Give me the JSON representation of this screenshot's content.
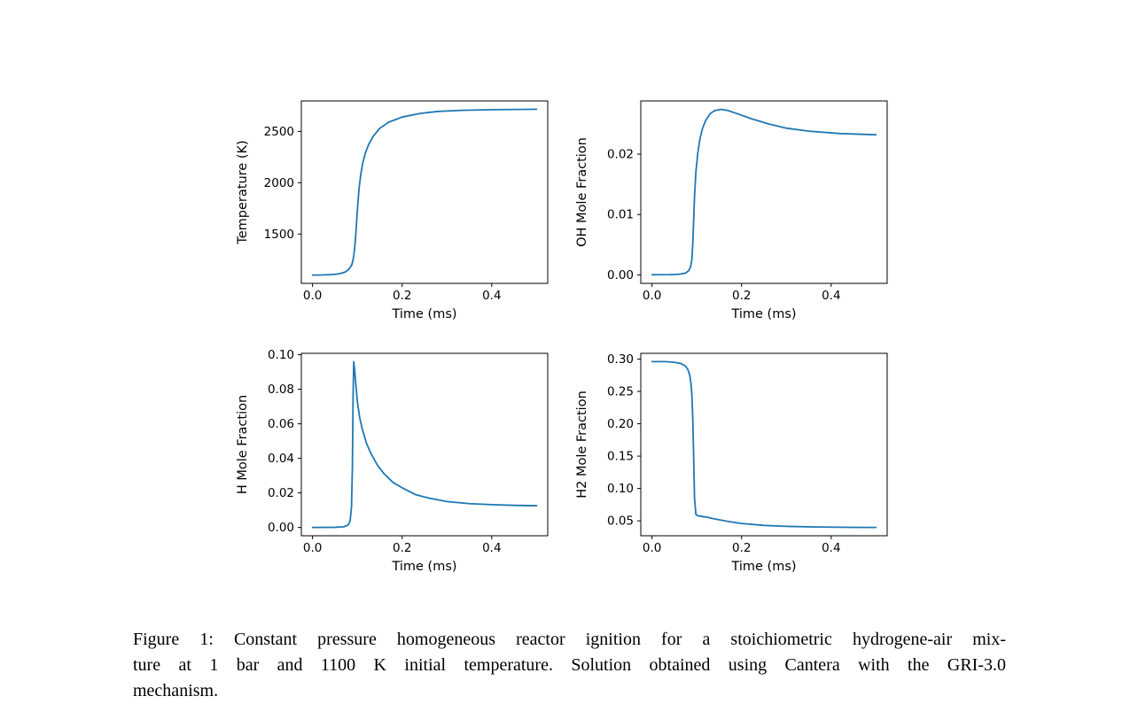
{
  "colors": {
    "line": "#1f77b4",
    "axis": "#000000",
    "text": "#000000",
    "background": "#ffffff"
  },
  "chart_data": [
    {
      "type": "line",
      "id": "temperature",
      "position": "top-left",
      "title": "",
      "xlabel": "Time (ms)",
      "ylabel": "Temperature (K)",
      "xlim": [
        -0.025,
        0.525
      ],
      "ylim": [
        1019,
        2797
      ],
      "xticks": {
        "values": [
          0.0,
          0.2,
          0.4
        ],
        "labels": [
          "0.0",
          "0.2",
          "0.4"
        ]
      },
      "yticks": {
        "values": [
          1500,
          2000,
          2500
        ],
        "labels": [
          "1500",
          "2000",
          "2500"
        ]
      },
      "x": [
        0,
        0.02,
        0.04,
        0.055,
        0.065,
        0.072,
        0.078,
        0.082,
        0.085,
        0.088,
        0.09,
        0.092,
        0.094,
        0.096,
        0.098,
        0.1,
        0.104,
        0.108,
        0.112,
        0.118,
        0.125,
        0.135,
        0.15,
        0.17,
        0.2,
        0.24,
        0.28,
        0.33,
        0.4,
        0.5
      ],
      "y": [
        1100,
        1101,
        1104,
        1110,
        1118,
        1128,
        1145,
        1162,
        1180,
        1205,
        1240,
        1290,
        1360,
        1460,
        1590,
        1730,
        1950,
        2090,
        2190,
        2290,
        2370,
        2450,
        2530,
        2590,
        2640,
        2675,
        2695,
        2705,
        2712,
        2716
      ]
    },
    {
      "type": "line",
      "id": "oh-mole-fraction",
      "position": "top-right",
      "title": "",
      "xlabel": "Time (ms)",
      "ylabel": "OH Mole Fraction",
      "xlim": [
        -0.025,
        0.525
      ],
      "ylim": [
        -0.0014,
        0.0288
      ],
      "xticks": {
        "values": [
          0.0,
          0.2,
          0.4
        ],
        "labels": [
          "0.0",
          "0.2",
          "0.4"
        ]
      },
      "yticks": {
        "values": [
          0.0,
          0.01,
          0.02
        ],
        "labels": [
          "0.00",
          "0.01",
          "0.02"
        ]
      },
      "x": [
        0,
        0.04,
        0.06,
        0.075,
        0.082,
        0.086,
        0.089,
        0.091,
        0.093,
        0.095,
        0.098,
        0.102,
        0.107,
        0.113,
        0.12,
        0.13,
        0.14,
        0.155,
        0.17,
        0.19,
        0.22,
        0.26,
        0.3,
        0.35,
        0.42,
        0.5
      ],
      "y": [
        3e-05,
        5e-05,
        0.0001,
        0.0003,
        0.0007,
        0.0013,
        0.0025,
        0.005,
        0.009,
        0.013,
        0.017,
        0.02,
        0.0225,
        0.0243,
        0.0256,
        0.0267,
        0.0272,
        0.0274,
        0.0272,
        0.0267,
        0.0259,
        0.025,
        0.0243,
        0.0238,
        0.0234,
        0.0232
      ]
    },
    {
      "type": "line",
      "id": "h-mole-fraction",
      "position": "bottom-left",
      "title": "",
      "xlabel": "Time (ms)",
      "ylabel": "H Mole Fraction",
      "xlim": [
        -0.025,
        0.525
      ],
      "ylim": [
        -0.0048,
        0.1008
      ],
      "xticks": {
        "values": [
          0.0,
          0.2,
          0.4
        ],
        "labels": [
          "0.0",
          "0.2",
          "0.4"
        ]
      },
      "yticks": {
        "values": [
          0.0,
          0.02,
          0.04,
          0.06,
          0.08,
          0.1
        ],
        "labels": [
          "0.00",
          "0.02",
          "0.04",
          "0.06",
          "0.08",
          "0.10"
        ]
      },
      "x": [
        0,
        0.05,
        0.07,
        0.08,
        0.084,
        0.087,
        0.089,
        0.0905,
        0.092,
        0.094,
        0.097,
        0.1,
        0.105,
        0.11,
        0.12,
        0.13,
        0.145,
        0.16,
        0.18,
        0.2,
        0.23,
        0.26,
        0.3,
        0.35,
        0.4,
        0.45,
        0.5
      ],
      "y": [
        0.0,
        0.0001,
        0.0004,
        0.0015,
        0.004,
        0.012,
        0.035,
        0.075,
        0.096,
        0.091,
        0.082,
        0.073,
        0.064,
        0.058,
        0.049,
        0.043,
        0.036,
        0.031,
        0.026,
        0.023,
        0.019,
        0.017,
        0.015,
        0.0138,
        0.0132,
        0.0128,
        0.0126
      ]
    },
    {
      "type": "line",
      "id": "h2-mole-fraction",
      "position": "bottom-right",
      "title": "",
      "xlabel": "Time (ms)",
      "ylabel": "H2 Mole Fraction",
      "xlim": [
        -0.025,
        0.525
      ],
      "ylim": [
        0.027,
        0.3088
      ],
      "xticks": {
        "values": [
          0.0,
          0.2,
          0.4
        ],
        "labels": [
          "0.0",
          "0.2",
          "0.4"
        ]
      },
      "yticks": {
        "values": [
          0.05,
          0.1,
          0.15,
          0.2,
          0.25,
          0.3
        ],
        "labels": [
          "0.05",
          "0.10",
          "0.15",
          "0.20",
          "0.25",
          "0.30"
        ]
      },
      "x": [
        0,
        0.03,
        0.05,
        0.065,
        0.075,
        0.08,
        0.084,
        0.087,
        0.089,
        0.091,
        0.093,
        0.095,
        0.098,
        0.102,
        0.11,
        0.12,
        0.14,
        0.17,
        0.2,
        0.25,
        0.3,
        0.37,
        0.44,
        0.5
      ],
      "y": [
        0.296,
        0.296,
        0.295,
        0.293,
        0.289,
        0.284,
        0.276,
        0.263,
        0.245,
        0.21,
        0.15,
        0.085,
        0.06,
        0.058,
        0.057,
        0.056,
        0.053,
        0.049,
        0.046,
        0.043,
        0.0415,
        0.0405,
        0.04,
        0.0398
      ]
    }
  ],
  "caption": {
    "label": "Figure 1:",
    "text": "Figure 1: Constant pressure homogeneous reactor ignition for a stoichiometric hydrogene-air mixture at 1 bar and 1100 K initial temperature. Solution obtained using Cantera with the GRI-3.0 mechanism.",
    "lines": [
      "Figure 1: Constant pressure homogeneous reactor ignition for a stoichiometric hydrogene-air mix-",
      "ture at 1 bar and 1100 K initial temperature. Solution obtained using Cantera with the GRI-3.0",
      "mechanism."
    ]
  }
}
